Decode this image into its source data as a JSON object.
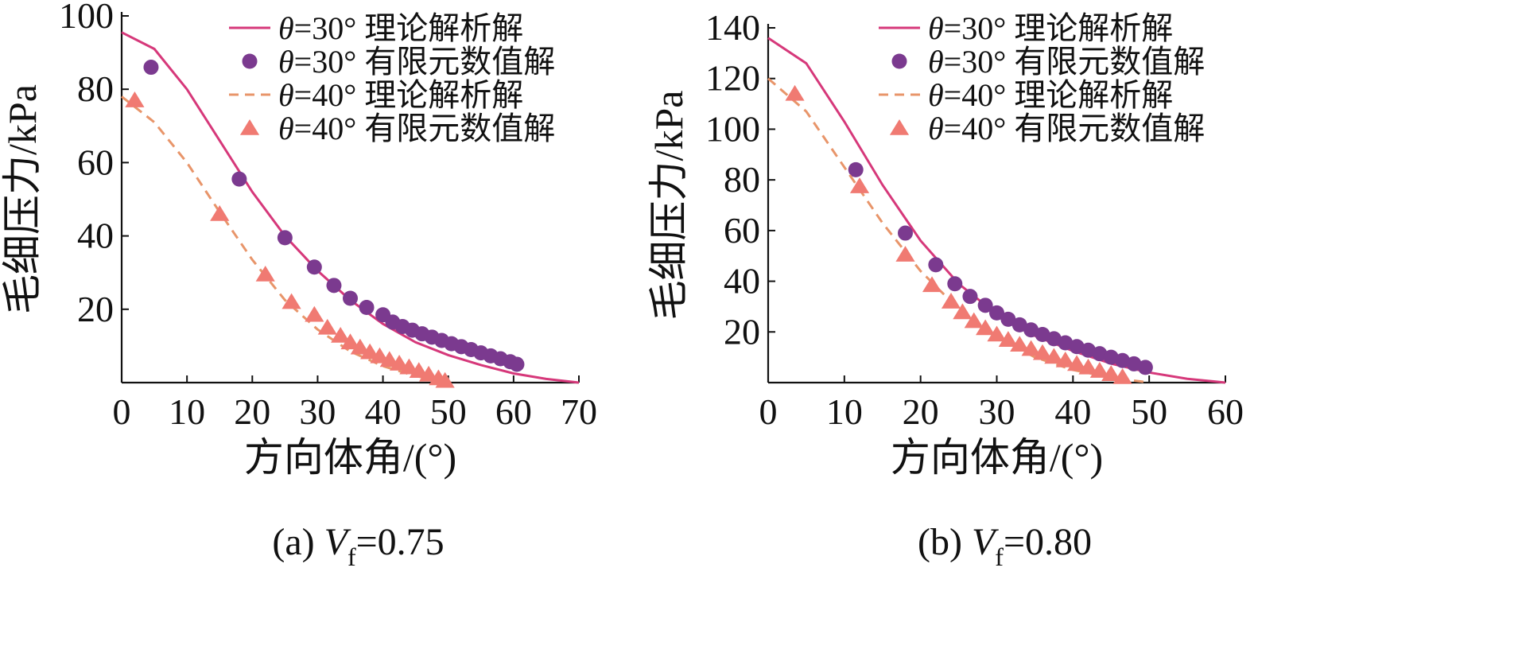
{
  "chart_data": [
    {
      "type": "line",
      "caption": {
        "prefix": "(a) ",
        "var": "V",
        "sub": "f",
        "value": "=0.75"
      },
      "xlabel": "方向体角/(°)",
      "ylabel": "毛细压力/kPa",
      "xlim": [
        0,
        70
      ],
      "ylim": [
        0,
        100
      ],
      "xticks": [
        0,
        10,
        20,
        30,
        40,
        50,
        60,
        70
      ],
      "yticks": [
        20,
        40,
        60,
        80,
        100
      ],
      "grid": false,
      "legend_position": "top-right",
      "series": [
        {
          "name": "θ=30° 理论解析解",
          "kind": "line",
          "style": "solid",
          "color": "#d6387a",
          "x": [
            0,
            5,
            10,
            15,
            20,
            25,
            30,
            35,
            40,
            45,
            50,
            55,
            60,
            65,
            70
          ],
          "y": [
            95.5,
            91,
            80,
            66,
            52,
            40,
            30.5,
            22.5,
            16,
            11,
            7.5,
            4.8,
            2.5,
            1,
            0
          ]
        },
        {
          "name": "θ=30° 有限元数值解",
          "kind": "scatter",
          "marker": "circle",
          "color": "#7b3a8f",
          "x": [
            4.5,
            18,
            25,
            29.5,
            32.5,
            35,
            37.5,
            40,
            41.5,
            43,
            44.5,
            46,
            47.5,
            49,
            50.5,
            52,
            53.5,
            55,
            56.5,
            58,
            59.5,
            60.5
          ],
          "y": [
            86,
            55.5,
            39.5,
            31.5,
            26.5,
            23,
            20.5,
            18.5,
            16.5,
            15.3,
            14.3,
            13.3,
            12.4,
            11.5,
            10.6,
            9.8,
            9,
            8.1,
            7.3,
            6.5,
            5.7,
            5
          ]
        },
        {
          "name": "θ=40° 理论解析解",
          "kind": "line",
          "style": "dashed",
          "color": "#e8956a",
          "x": [
            0,
            5,
            10,
            15,
            20,
            25,
            30,
            35,
            40,
            45,
            50
          ],
          "y": [
            78,
            71,
            60,
            46.5,
            33.5,
            22.5,
            14.5,
            8.5,
            4.5,
            1.8,
            0
          ]
        },
        {
          "name": "θ=40° 有限元数值解",
          "kind": "scatter",
          "marker": "triangle",
          "color": "#f07a72",
          "x": [
            2,
            15,
            22,
            26,
            29.5,
            31.5,
            33.5,
            35,
            36.5,
            38,
            39.5,
            41,
            42.5,
            44,
            45.5,
            47,
            48.5,
            49.5
          ],
          "y": [
            77,
            46,
            29.5,
            22,
            18.5,
            15,
            12.8,
            11,
            9.6,
            8.3,
            7.2,
            6.2,
            5.2,
            4.2,
            3.2,
            2.2,
            1.2,
            0.5
          ]
        }
      ]
    },
    {
      "type": "line",
      "caption": {
        "prefix": "(b) ",
        "var": "V",
        "sub": "f",
        "value": "=0.80"
      },
      "xlabel": "方向体角/(°)",
      "ylabel": "毛细压力/kPa",
      "xlim": [
        0,
        60
      ],
      "ylim": [
        0,
        140
      ],
      "xticks": [
        0,
        10,
        20,
        30,
        40,
        50,
        60
      ],
      "yticks": [
        20,
        40,
        60,
        80,
        100,
        120,
        140
      ],
      "grid": false,
      "legend_position": "top-right",
      "series": [
        {
          "name": "θ=30° 理论解析解",
          "kind": "line",
          "style": "solid",
          "color": "#d6387a",
          "x": [
            0,
            5,
            10,
            15,
            20,
            25,
            30,
            35,
            40,
            45,
            50,
            55,
            60
          ],
          "y": [
            136,
            126,
            103,
            78,
            56,
            39,
            27,
            18.5,
            12.5,
            7.5,
            4,
            1.5,
            0
          ]
        },
        {
          "name": "θ=30° 有限元数值解",
          "kind": "scatter",
          "marker": "circle",
          "color": "#7b3a8f",
          "x": [
            11.5,
            18,
            22,
            24.5,
            26.5,
            28.5,
            30,
            31.5,
            33,
            34.5,
            36,
            37.5,
            39,
            40.5,
            42,
            43.5,
            45,
            46.5,
            48,
            49.5
          ],
          "y": [
            84,
            59,
            46.5,
            39,
            34,
            30.5,
            27.5,
            25,
            22.8,
            20.8,
            19,
            17.3,
            15.7,
            14.2,
            12.8,
            11.4,
            10,
            8.7,
            7.4,
            6
          ]
        },
        {
          "name": "θ=40° 理论解析解",
          "kind": "line",
          "style": "dashed",
          "color": "#e8956a",
          "x": [
            0,
            5,
            10,
            15,
            20,
            25,
            30,
            35,
            40,
            45,
            50
          ],
          "y": [
            120,
            107,
            85,
            63,
            44,
            29,
            18,
            10,
            5,
            2,
            0
          ]
        },
        {
          "name": "θ=40° 有限元数值解",
          "kind": "scatter",
          "marker": "triangle",
          "color": "#f07a72",
          "x": [
            3.5,
            12,
            18,
            21.5,
            24,
            25.5,
            27,
            28.5,
            30,
            31.5,
            33,
            34.5,
            36,
            37.5,
            39,
            40.5,
            42,
            43.5,
            45,
            46.5
          ],
          "y": [
            114,
            77.5,
            50.5,
            38.5,
            32,
            27.8,
            24.3,
            21.5,
            19,
            16.9,
            15,
            13.3,
            11.7,
            10.2,
            8.8,
            7.4,
            6,
            4.7,
            3.4,
            2.2
          ]
        }
      ]
    }
  ]
}
